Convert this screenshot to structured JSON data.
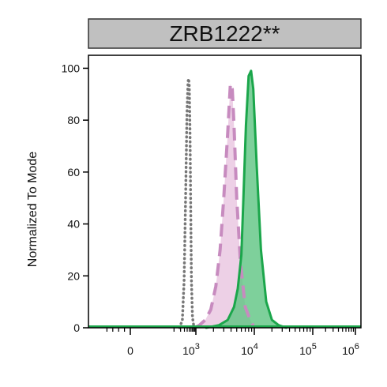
{
  "chart_data": {
    "type": "area",
    "title": "ZRB1222**",
    "ylabel": "Normalized To Mode",
    "xlabel": "",
    "x_scale": "biexponential",
    "ylim": [
      0,
      105
    ],
    "y_ticks": [
      {
        "value": 0,
        "label": "0"
      },
      {
        "value": 20,
        "label": "20"
      },
      {
        "value": 40,
        "label": "40"
      },
      {
        "value": 60,
        "label": "60"
      },
      {
        "value": 80,
        "label": "80"
      },
      {
        "value": 100,
        "label": "100"
      }
    ],
    "x_ticks": [
      {
        "value": 0,
        "base": "0",
        "exp": ""
      },
      {
        "value": 1000,
        "base": "10",
        "exp": "3"
      },
      {
        "value": 10000,
        "base": "10",
        "exp": "4"
      },
      {
        "value": 100000,
        "base": "10",
        "exp": "5"
      },
      {
        "value": 1000000,
        "base": "10",
        "exp": "6"
      }
    ],
    "series": [
      {
        "style": "dotted",
        "color": "#777777",
        "fill": "none",
        "x": [
          180,
          240,
          290,
          340,
          390,
          440,
          470,
          500,
          540,
          580,
          630,
          700,
          790,
          880
        ],
        "y": [
          0,
          3,
          18,
          50,
          82,
          95,
          96,
          93,
          75,
          45,
          18,
          4,
          1,
          0
        ]
      },
      {
        "style": "dashed",
        "color": "#c78bbf",
        "fill": "#edd0e6",
        "x": [
          900,
          1150,
          1450,
          1800,
          2200,
          2600,
          3000,
          3500,
          3900,
          4200,
          4500,
          5000,
          5800,
          7000,
          8500,
          10000
        ],
        "y": [
          0,
          1,
          3,
          7,
          16,
          30,
          50,
          75,
          94,
          92,
          78,
          50,
          25,
          8,
          3,
          0
        ]
      },
      {
        "style": "solid",
        "color": "#1ba64b",
        "fill": "#5ec482",
        "x": [
          1500,
          2500,
          3500,
          4500,
          5200,
          6000,
          6500,
          7200,
          8000,
          8800,
          9600,
          11000,
          13000,
          16000,
          20000,
          26000,
          35000
        ],
        "y": [
          0,
          1,
          3,
          8,
          15,
          28,
          50,
          78,
          97,
          99,
          92,
          62,
          30,
          10,
          3,
          1,
          0
        ]
      }
    ]
  }
}
